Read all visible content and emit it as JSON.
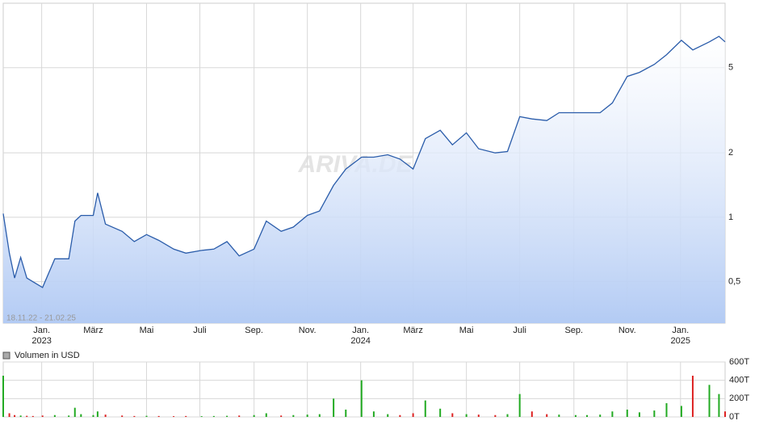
{
  "chart_data": [
    {
      "type": "line",
      "log_scale": true,
      "grid": true,
      "subtitle": "18.11.22 - 21.02.25",
      "watermark": "ARIVA.DE",
      "xlim": [
        "2022-11-18",
        "2025-02-21"
      ],
      "xticks": [
        {
          "value": "2023-01-01",
          "label": "Jan.",
          "year": "2023"
        },
        {
          "value": "2023-03-01",
          "label": "März"
        },
        {
          "value": "2023-05-01",
          "label": "Mai"
        },
        {
          "value": "2023-07-01",
          "label": "Juli"
        },
        {
          "value": "2023-09-01",
          "label": "Sep."
        },
        {
          "value": "2023-11-01",
          "label": "Nov."
        },
        {
          "value": "2024-01-01",
          "label": "Jan.",
          "year": "2024"
        },
        {
          "value": "2024-03-01",
          "label": "März"
        },
        {
          "value": "2024-05-01",
          "label": "Mai"
        },
        {
          "value": "2024-07-01",
          "label": "Juli"
        },
        {
          "value": "2024-09-01",
          "label": "Sep."
        },
        {
          "value": "2024-11-01",
          "label": "Nov."
        },
        {
          "value": "2025-01-01",
          "label": "Jan.",
          "year": "2025"
        }
      ],
      "ylim": [
        0.32,
        10
      ],
      "yticks": [
        {
          "value": 0.5,
          "label": "0,5"
        },
        1,
        2,
        5
      ],
      "x": [
        "2022-11-18",
        "2022-11-25",
        "2022-12-01",
        "2022-12-08",
        "2022-12-15",
        "2022-12-22",
        "2023-01-02",
        "2023-01-16",
        "2023-02-01",
        "2023-02-08",
        "2023-02-15",
        "2023-03-01",
        "2023-03-06",
        "2023-03-15",
        "2023-04-03",
        "2023-04-17",
        "2023-05-01",
        "2023-05-15",
        "2023-06-01",
        "2023-06-15",
        "2023-07-03",
        "2023-07-17",
        "2023-08-01",
        "2023-08-15",
        "2023-09-01",
        "2023-09-15",
        "2023-10-02",
        "2023-10-16",
        "2023-11-01",
        "2023-11-15",
        "2023-12-01",
        "2023-12-15",
        "2024-01-02",
        "2024-01-16",
        "2024-02-01",
        "2024-02-15",
        "2024-03-01",
        "2024-03-15",
        "2024-04-01",
        "2024-04-15",
        "2024-05-01",
        "2024-05-15",
        "2024-06-03",
        "2024-06-17",
        "2024-07-01",
        "2024-07-15",
        "2024-08-01",
        "2024-08-15",
        "2024-09-03",
        "2024-09-16",
        "2024-10-01",
        "2024-10-15",
        "2024-11-01",
        "2024-11-15",
        "2024-12-02",
        "2024-12-16",
        "2025-01-02",
        "2025-01-15",
        "2025-02-03",
        "2025-02-14",
        "2025-02-21"
      ],
      "series": [
        {
          "color": "#2a5caa",
          "fill": "#b3cbf4",
          "values": [
            1.04,
            0.68,
            0.52,
            0.65,
            0.52,
            0.5,
            0.47,
            0.64,
            0.64,
            0.96,
            1.02,
            1.02,
            1.3,
            0.93,
            0.86,
            0.77,
            0.83,
            0.78,
            0.71,
            0.68,
            0.7,
            0.71,
            0.77,
            0.66,
            0.71,
            0.96,
            0.86,
            0.9,
            1.02,
            1.07,
            1.41,
            1.68,
            1.91,
            1.91,
            1.96,
            1.87,
            1.68,
            2.33,
            2.55,
            2.18,
            2.48,
            2.09,
            2.0,
            2.03,
            2.95,
            2.88,
            2.83,
            3.08,
            3.08,
            3.08,
            3.08,
            3.42,
            4.55,
            4.75,
            5.18,
            5.75,
            6.71,
            6.05,
            6.6,
            7.0,
            6.6
          ]
        }
      ]
    },
    {
      "type": "bar",
      "grid": true,
      "up_color": "#22aa22",
      "down_color": "#dd2222",
      "ylim": [
        0,
        600000
      ],
      "yticks": [
        {
          "value": 0,
          "label": "0T"
        },
        {
          "value": 200000,
          "label": "200T"
        },
        {
          "value": 400000,
          "label": "400T"
        },
        {
          "value": 600000,
          "label": "600T"
        }
      ],
      "series": [
        {
          "name": "Volumen in USD",
          "color": "#aaaaaa",
          "values": [
            450000,
            40000,
            20000,
            15000,
            12000,
            10000,
            15000,
            20000,
            15000,
            100000,
            30000,
            20000,
            60000,
            25000,
            15000,
            10000,
            12000,
            10000,
            8000,
            10000,
            8000,
            10000,
            12000,
            15000,
            20000,
            40000,
            15000,
            20000,
            25000,
            30000,
            200000,
            80000,
            400000,
            60000,
            30000,
            20000,
            40000,
            180000,
            90000,
            40000,
            30000,
            25000,
            20000,
            30000,
            250000,
            60000,
            30000,
            25000,
            20000,
            20000,
            25000,
            60000,
            80000,
            50000,
            70000,
            150000,
            120000,
            450000,
            350000,
            250000,
            60000
          ]
        }
      ]
    }
  ]
}
